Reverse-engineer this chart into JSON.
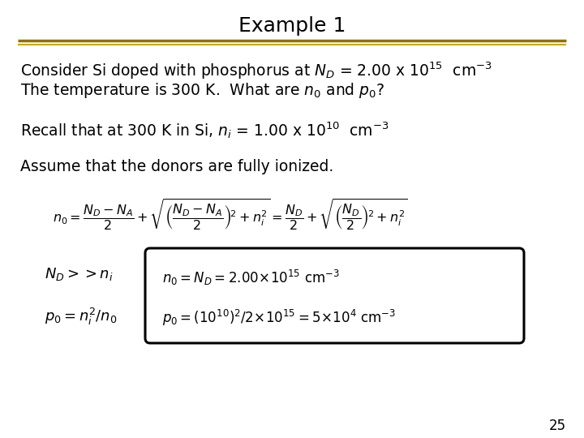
{
  "title": "Example 1",
  "title_fontsize": 18,
  "title_color": "#000000",
  "bg_color": "#ffffff",
  "line1_color": "#8B7500",
  "line2_color": "#C8A800",
  "slide_number": "25",
  "text_color": "#000000",
  "box_border_color": "#000000",
  "figsize": [
    7.2,
    5.4
  ],
  "dpi": 100
}
